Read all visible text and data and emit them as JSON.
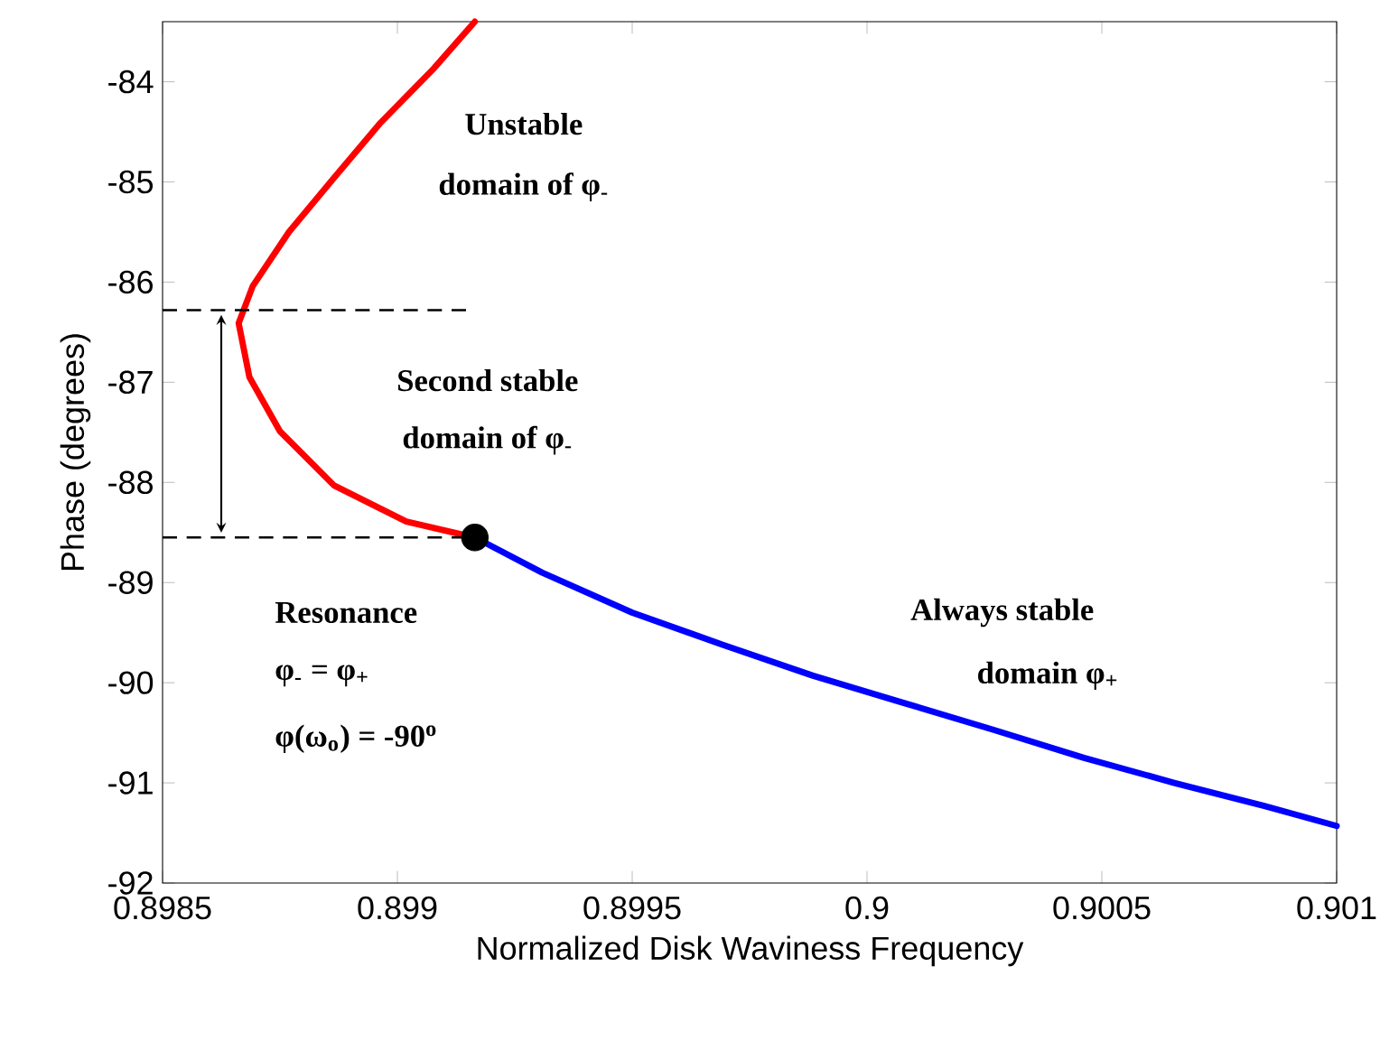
{
  "chart_data": {
    "type": "line",
    "xlabel": "Normalized Disk Waviness Frequency",
    "ylabel": "Phase (degrees)",
    "xlim": [
      0.8985,
      0.901
    ],
    "ylim": [
      -92,
      -83.4
    ],
    "xticks": [
      0.8985,
      0.899,
      0.8995,
      0.9,
      0.9005,
      0.901
    ],
    "yticks": [
      -92,
      -91,
      -90,
      -89,
      -88,
      -87,
      -86,
      -85,
      -84
    ],
    "series": [
      {
        "color": "#ff0000",
        "marker": "none",
        "x": [
          0.899165,
          0.899077,
          0.898962,
          0.898865,
          0.898769,
          0.898692,
          0.898662,
          0.898685,
          0.89875,
          0.898865,
          0.899019,
          0.899165
        ],
        "values": [
          -83.4,
          -83.87,
          -84.42,
          -84.96,
          -85.5,
          -86.04,
          -86.41,
          -86.95,
          -87.49,
          -88.03,
          -88.39,
          -88.55
        ]
      },
      {
        "color": "#0000ff",
        "marker": "none",
        "x": [
          0.899165,
          0.899308,
          0.8995,
          0.899692,
          0.899885,
          0.900077,
          0.900269,
          0.900462,
          0.900654,
          0.900846,
          0.901
        ],
        "values": [
          -88.55,
          -88.9,
          -89.3,
          -89.62,
          -89.93,
          -90.2,
          -90.47,
          -90.75,
          -91.0,
          -91.23,
          -91.43
        ]
      },
      {
        "type": "scatter",
        "color": "#000000",
        "marker": "circle",
        "x": [
          0.899165
        ],
        "values": [
          -88.55
        ]
      }
    ],
    "ref_lines": [
      {
        "axis": "y",
        "value": -86.28,
        "line_style": "dashed",
        "color": "#000000"
      },
      {
        "axis": "y",
        "value": -88.55,
        "line_style": "dashed",
        "color": "#000000"
      }
    ],
    "annotations": [
      "Unstable",
      "domain of φ$_{-}$",
      "Second stable",
      "domain of φ$_{-}$",
      "Resonance",
      "φ$_{-}$ = φ$_{+}$",
      "φ(ω$_{o}$) = -90$^{o}$",
      "Always stable",
      "domain φ$_{+}$"
    ],
    "grid": false
  }
}
